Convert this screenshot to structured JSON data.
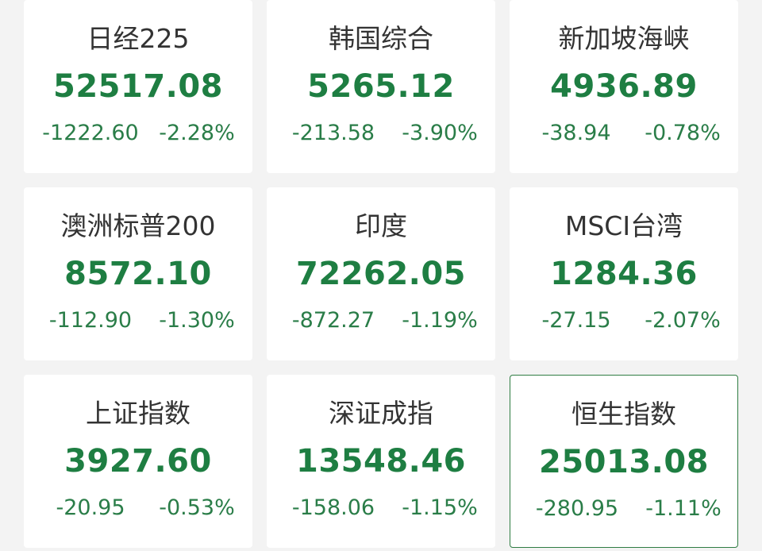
{
  "accent_color": "#1e7e42",
  "indices": [
    {
      "name": "日经225",
      "value": "52517.08",
      "change": "-1222.60",
      "percent": "-2.28%"
    },
    {
      "name": "韩国综合",
      "value": "5265.12",
      "change": "-213.58",
      "percent": "-3.90%"
    },
    {
      "name": "新加坡海峡",
      "value": "4936.89",
      "change": "-38.94",
      "percent": "-0.78%"
    },
    {
      "name": "澳洲标普200",
      "value": "8572.10",
      "change": "-112.90",
      "percent": "-1.30%"
    },
    {
      "name": "印度",
      "value": "72262.05",
      "change": "-872.27",
      "percent": "-1.19%"
    },
    {
      "name": "MSCI台湾",
      "value": "1284.36",
      "change": "-27.15",
      "percent": "-2.07%"
    },
    {
      "name": "上证指数",
      "value": "3927.60",
      "change": "-20.95",
      "percent": "-0.53%"
    },
    {
      "name": "深证成指",
      "value": "13548.46",
      "change": "-158.06",
      "percent": "-1.15%"
    },
    {
      "name": "恒生指数",
      "value": "25013.08",
      "change": "-280.95",
      "percent": "-1.11%",
      "selected": true
    }
  ]
}
